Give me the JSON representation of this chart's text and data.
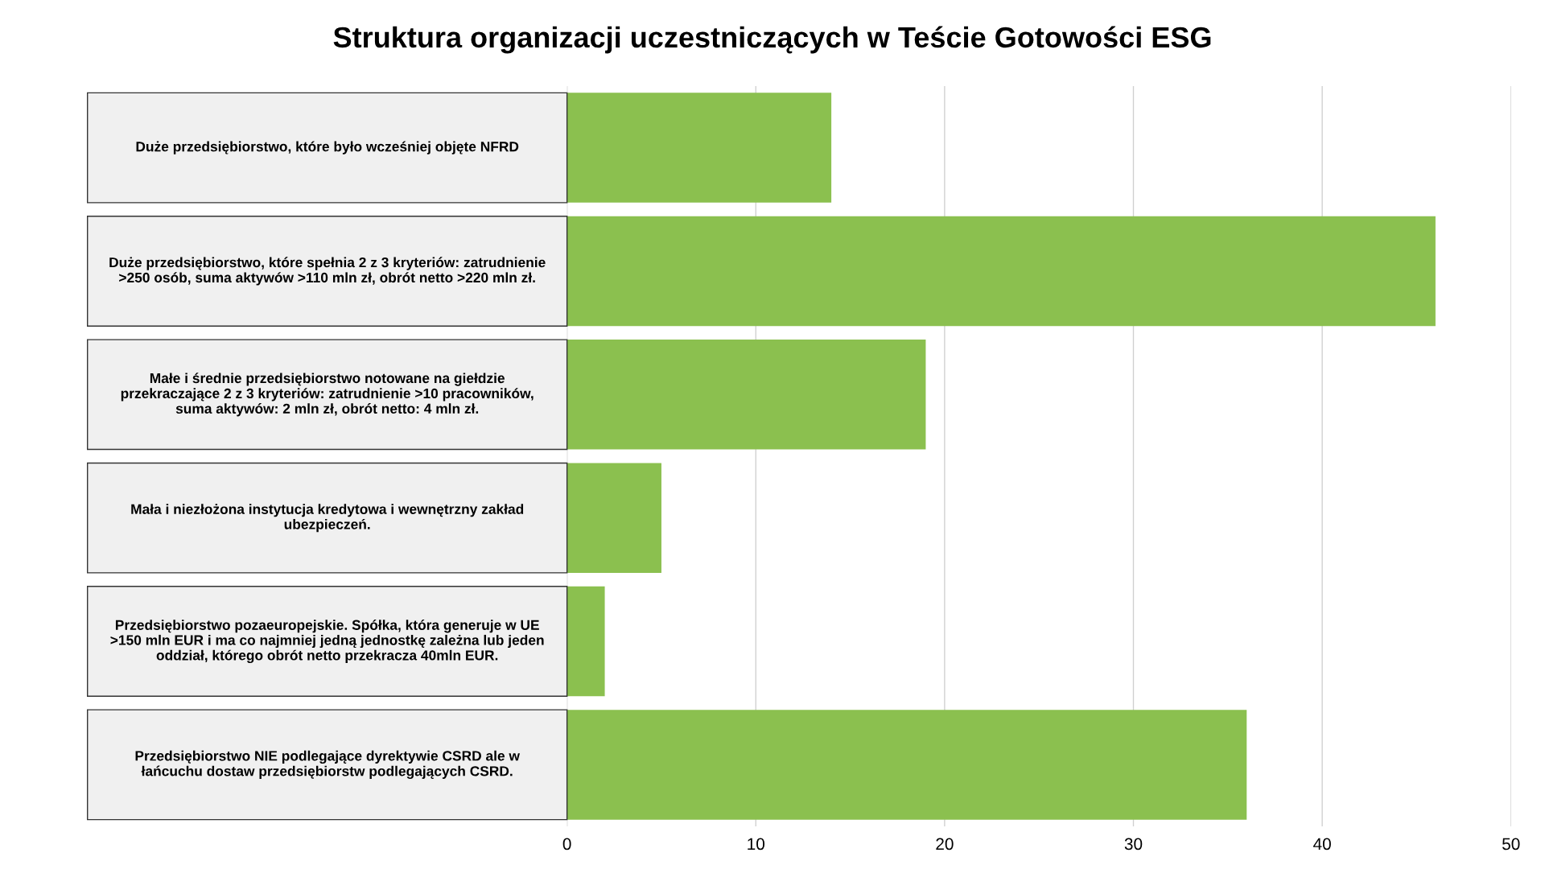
{
  "chart_data": {
    "type": "bar",
    "orientation": "horizontal",
    "title": "Struktura organizacji uczestniczących w Teście Gotowości ESG",
    "categories": [
      "Duże przedsiębiorstwo, które było wcześniej objęte NFRD",
      "Duże przedsiębiorstwo, które spełnia 2 z 3 kryteriów: zatrudnienie >250 osób, suma aktywów >110 mln zł, obrót netto >220 mln zł.",
      "Małe i średnie przedsiębiorstwo notowane na giełdzie przekraczające 2 z 3 kryteriów: zatrudnienie >10 pracowników, suma aktywów: 2 mln zł, obrót netto: 4 mln zł.",
      "Mała i niezłożona instytucja kredytowa i wewnętrzny zakład ubezpieczeń.",
      "Przedsiębiorstwo pozaeuropejskie. Spółka, która generuje w UE >150 mln EUR i ma co najmniej jedną jednostkę zależna lub jeden oddział, którego obrót netto przekracza 40mln EUR.",
      "Przedsiębiorstwo NIE podlegające dyrektywie CSRD ale w łańcuchu dostaw przedsiębiorstw podlegających CSRD."
    ],
    "values": [
      14,
      46,
      19,
      5,
      2,
      36
    ],
    "color": "#8bc04f",
    "xlim": [
      0,
      50
    ],
    "xticks": [
      0,
      10,
      20,
      30,
      40,
      50
    ],
    "grid": "x",
    "legend": false
  }
}
